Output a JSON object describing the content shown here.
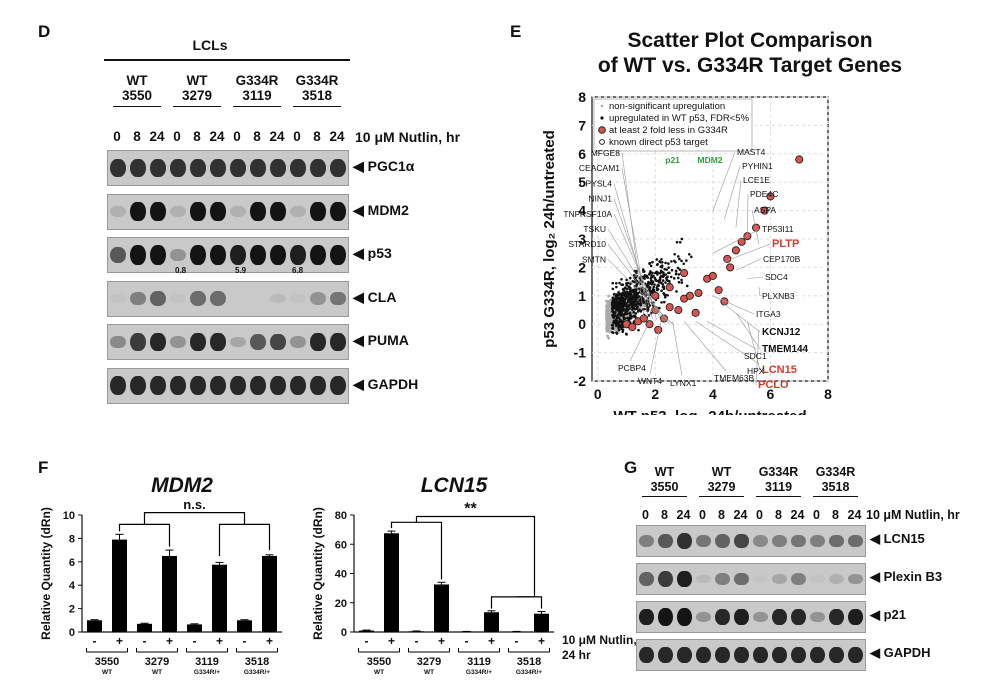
{
  "panels": {
    "D": {
      "letter": "D",
      "group_title": "LCLs",
      "cell_lines": [
        {
          "genotype": "WT",
          "id": "3550"
        },
        {
          "genotype": "WT",
          "id": "3279"
        },
        {
          "genotype": "G334R",
          "id": "3119"
        },
        {
          "genotype": "G334R",
          "id": "3518"
        }
      ],
      "timepoints": [
        "0",
        "8",
        "24",
        "0",
        "8",
        "24",
        "0",
        "8",
        "24",
        "0",
        "8",
        "24"
      ],
      "treatment_label": "10 μM Nutlin, hr",
      "blots": [
        {
          "label": "PGC1α",
          "intensity": [
            0.8,
            0.8,
            0.8,
            0.8,
            0.8,
            0.8,
            0.8,
            0.8,
            0.8,
            0.8,
            0.8,
            0.8
          ]
        },
        {
          "label": "MDM2",
          "intensity": [
            0.15,
            0.95,
            0.95,
            0.15,
            0.95,
            0.95,
            0.15,
            0.95,
            0.95,
            0.15,
            0.95,
            0.95
          ]
        },
        {
          "label": "p53",
          "intensity": [
            0.6,
            0.95,
            0.95,
            0.3,
            0.95,
            0.95,
            0.9,
            0.95,
            0.95,
            0.9,
            0.95,
            0.95
          ]
        },
        {
          "label": "CLA",
          "intensity": [
            0.05,
            0.4,
            0.55,
            0.05,
            0.5,
            0.5,
            0.0,
            0.0,
            0.1,
            0.05,
            0.3,
            0.45
          ]
        },
        {
          "label": "PUMA",
          "intensity": [
            0.35,
            0.75,
            0.85,
            0.3,
            0.85,
            0.85,
            0.2,
            0.6,
            0.7,
            0.3,
            0.85,
            0.85
          ]
        },
        {
          "label": "GAPDH",
          "intensity": [
            0.85,
            0.85,
            0.85,
            0.85,
            0.85,
            0.85,
            0.85,
            0.85,
            0.85,
            0.85,
            0.85,
            0.85
          ]
        }
      ],
      "p53_ratios": [
        "0.8",
        "5.9",
        "6.8"
      ]
    },
    "E": {
      "letter": "E",
      "title_line1": "Scatter Plot Comparison",
      "title_line2": "of WT vs. G334R Target Genes",
      "xlabel": "WT p53, log₂ 24h/untreated",
      "ylabel": "p53 G334R, log₂ 24h/untreated",
      "legend": [
        "non-significant upregulation",
        "upregulated in WT p53, FDR<5%",
        "at least 2 fold less in G334R",
        "known direct p53 target"
      ],
      "gene_labels_left": [
        "MFGE8",
        "CEACAM1",
        "DPYSL4",
        "NINJ1",
        "TNFRSF10A",
        "TSKU",
        "STARD10",
        "SMTN"
      ],
      "gene_labels_green": [
        "p21",
        "MDM2"
      ],
      "gene_labels_right": [
        "MAST4",
        "PYHIN1",
        "LCE1E",
        "PDE4C",
        "ASPA",
        "TP53I11",
        "PLTP",
        "CEP170B",
        "SDC4",
        "PLXNB3",
        "ITGA3",
        "KCNJ12",
        "TMEM144",
        "LCN15",
        "PCLO"
      ],
      "gene_labels_bottom": [
        "PCBP4",
        "WNT4",
        "LYNX1",
        "TMEM63B",
        "HPX",
        "SDC1"
      ]
    },
    "F": {
      "letter": "F",
      "treatment_label_line1": "10 μM Nutlin,",
      "treatment_label_line2": "24 hr",
      "samples": [
        {
          "id": "3550",
          "geno": "WT"
        },
        {
          "id": "3279",
          "geno": "WT"
        },
        {
          "id": "3119",
          "geno": "G334R/+"
        },
        {
          "id": "3518",
          "geno": "G334R/+"
        }
      ],
      "signs": [
        "-",
        "+",
        "-",
        "+",
        "-",
        "+",
        "-",
        "+"
      ],
      "mdm2_sig": "n.s.",
      "lcn15_sig": "**"
    },
    "G": {
      "letter": "G",
      "cell_lines": [
        {
          "genotype": "WT",
          "id": "3550"
        },
        {
          "genotype": "WT",
          "id": "3279"
        },
        {
          "genotype": "G334R",
          "id": "3119"
        },
        {
          "genotype": "G334R",
          "id": "3518"
        }
      ],
      "timepoints": [
        "0",
        "8",
        "24",
        "0",
        "8",
        "24",
        "0",
        "8",
        "24",
        "0",
        "8",
        "24"
      ],
      "treatment_label": "10 μM Nutlin, hr",
      "blots": [
        {
          "label": "LCN15",
          "intensity": [
            0.4,
            0.6,
            0.8,
            0.45,
            0.55,
            0.7,
            0.35,
            0.4,
            0.45,
            0.4,
            0.5,
            0.5
          ]
        },
        {
          "label": "Plexin B3",
          "intensity": [
            0.55,
            0.75,
            0.9,
            0.1,
            0.4,
            0.5,
            0.05,
            0.2,
            0.4,
            0.05,
            0.15,
            0.3
          ]
        },
        {
          "label": "p21",
          "intensity": [
            0.9,
            0.95,
            0.95,
            0.3,
            0.85,
            0.9,
            0.3,
            0.85,
            0.85,
            0.3,
            0.85,
            0.9
          ]
        },
        {
          "label": "GAPDH",
          "intensity": [
            0.85,
            0.85,
            0.85,
            0.85,
            0.85,
            0.85,
            0.85,
            0.85,
            0.85,
            0.85,
            0.85,
            0.85
          ]
        }
      ]
    }
  },
  "chart_data": [
    {
      "type": "bar",
      "title": "MDM2",
      "ylabel": "Relative Quantity (dRn)",
      "ylim": [
        0,
        10
      ],
      "yticks": [
        0,
        2,
        4,
        6,
        8,
        10
      ],
      "categories": [
        "3550 -",
        "3550 +",
        "3279 -",
        "3279 +",
        "3119 -",
        "3119 +",
        "3518 -",
        "3518 +"
      ],
      "values": [
        1.0,
        7.9,
        0.7,
        6.5,
        0.65,
        5.75,
        1.0,
        6.5
      ],
      "errors": [
        0.05,
        0.45,
        0.05,
        0.5,
        0.05,
        0.2,
        0.05,
        0.1
      ]
    },
    {
      "type": "bar",
      "title": "LCN15",
      "ylabel": "Relative Quantity (dRn)",
      "ylim": [
        0,
        80
      ],
      "yticks": [
        0,
        20,
        40,
        60,
        80
      ],
      "categories": [
        "3550 -",
        "3550 +",
        "3279 -",
        "3279 +",
        "3119 -",
        "3119 +",
        "3518 -",
        "3518 +"
      ],
      "values": [
        1.0,
        67.5,
        0.5,
        32.5,
        0.3,
        13.5,
        0.3,
        12.5
      ],
      "errors": [
        0.3,
        1.5,
        0.2,
        1.5,
        0.1,
        1.0,
        0.1,
        1.5
      ]
    },
    {
      "type": "scatter",
      "title": "",
      "xlabel": "WT p53, log₂ 24h/untreated",
      "ylabel": "p53 G334R, log₂ 24h/untreated",
      "xlim": [
        -0.2,
        8
      ],
      "ylim": [
        -2,
        8
      ],
      "xticks": [
        0,
        2,
        4,
        6,
        8
      ],
      "yticks": [
        -2,
        -1,
        0,
        1,
        2,
        3,
        4,
        5,
        6,
        7,
        8
      ],
      "series": [
        {
          "name": "at least 2 fold less in G334R",
          "x": [
            1.0,
            1.2,
            1.4,
            1.6,
            1.8,
            2.0,
            2.1,
            2.3,
            2.5,
            2.8,
            3.0,
            3.2,
            3.5,
            3.8,
            4.0,
            4.2,
            4.5,
            4.8,
            5.0,
            5.2,
            5.5,
            5.8,
            6.0,
            7.0,
            2.0,
            2.5,
            3.0,
            3.4,
            4.4,
            4.6
          ],
          "y": [
            0.0,
            -0.1,
            0.1,
            0.2,
            0.0,
            0.5,
            -0.2,
            0.2,
            0.6,
            0.5,
            0.9,
            1.0,
            1.1,
            1.6,
            1.7,
            1.2,
            2.3,
            2.6,
            2.9,
            3.1,
            3.4,
            4.0,
            4.5,
            5.8,
            1.0,
            1.3,
            1.8,
            0.4,
            0.8,
            2.0
          ]
        }
      ]
    }
  ]
}
